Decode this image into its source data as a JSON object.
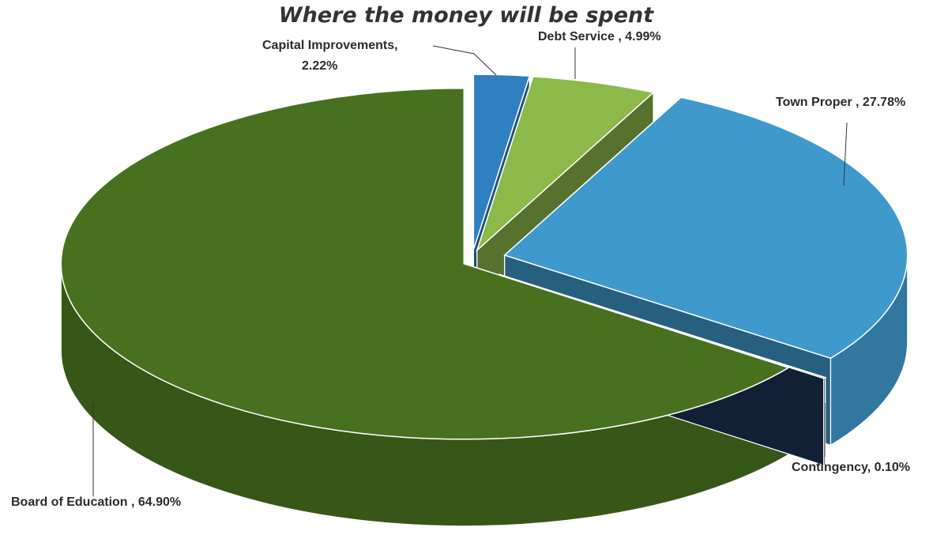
{
  "chart_data": {
    "type": "pie",
    "title": "Where the money will be spent",
    "slices": [
      {
        "name": "Capital Improvements",
        "value": 2.22,
        "label": "Capital Improvements,",
        "label2": "2.22%",
        "color": "#2f7fc1"
      },
      {
        "name": "Debt Service",
        "value": 4.99,
        "label": "Debt Service , 4.99%",
        "color": "#8db84a"
      },
      {
        "name": "Town Proper",
        "value": 27.78,
        "label": "Town Proper , 27.78%",
        "color": "#3f99cd"
      },
      {
        "name": "Contingency",
        "value": 0.1,
        "label": "Contingency, 0.10%",
        "color": "#1d3357"
      },
      {
        "name": "Board of Education",
        "value": 64.9,
        "label": "Board of Education , 64.90%",
        "color": "#47701f"
      }
    ]
  }
}
